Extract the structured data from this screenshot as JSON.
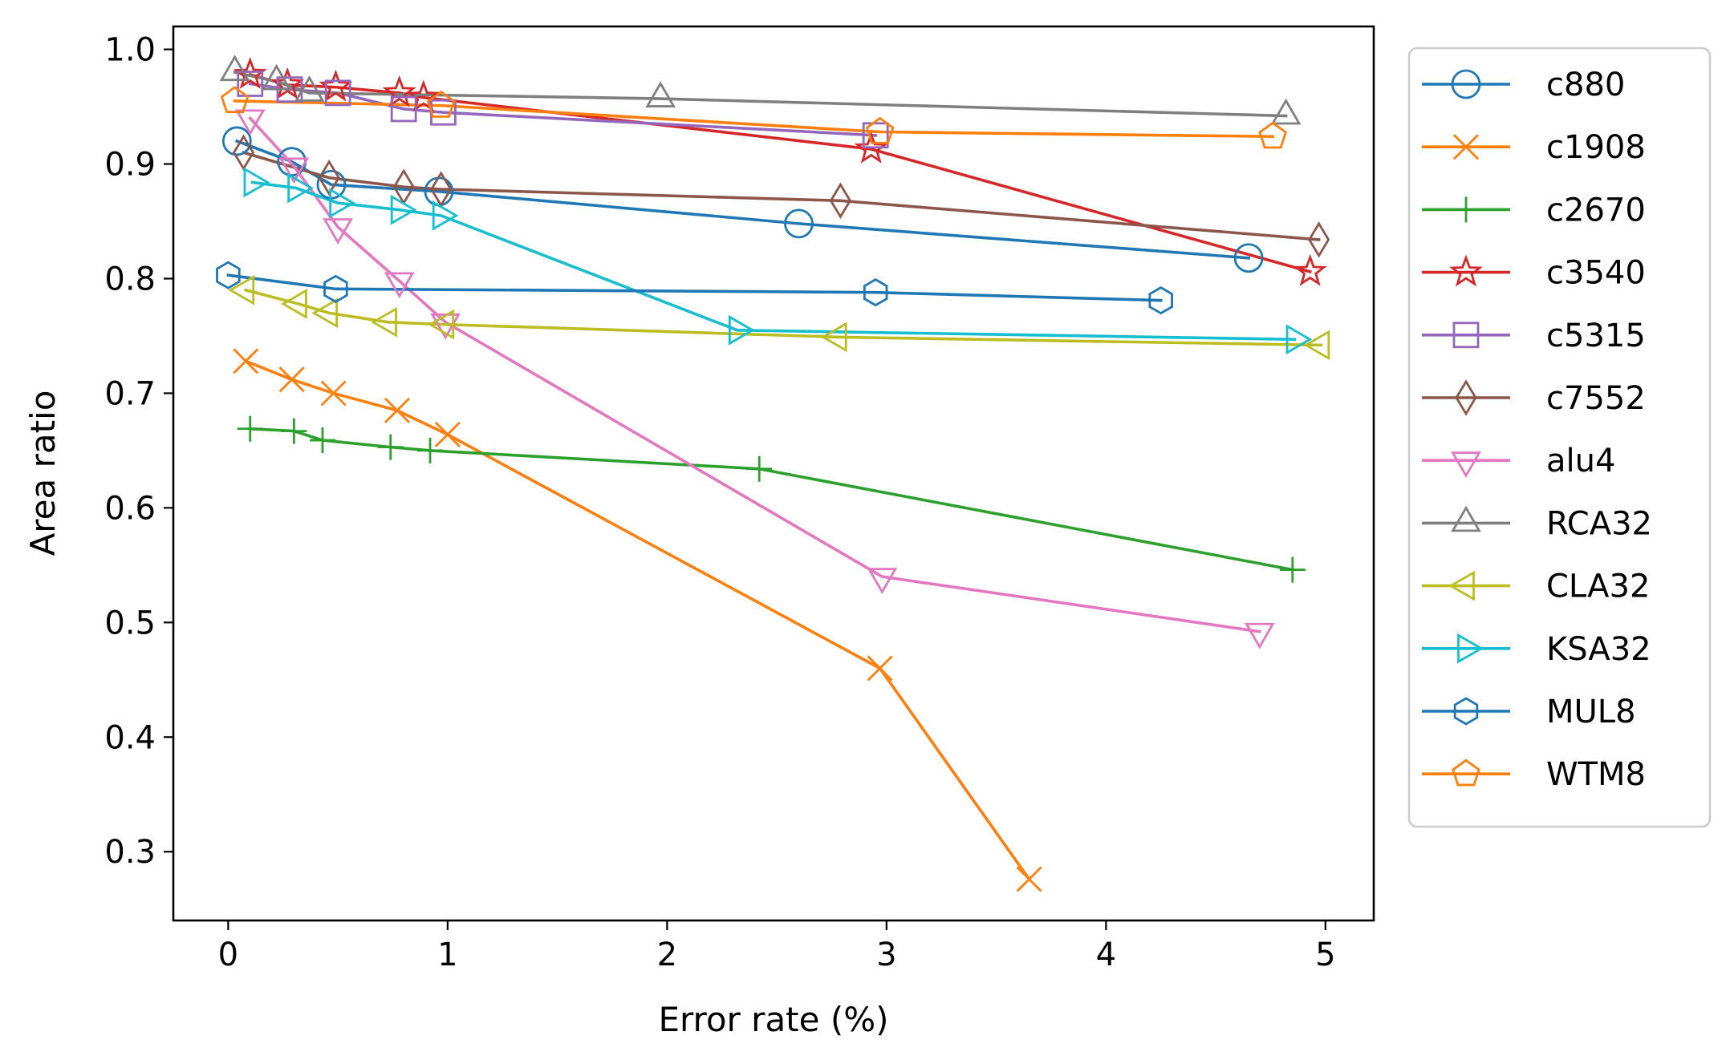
{
  "chart_data": {
    "type": "line",
    "xlabel": "Error rate (%)",
    "ylabel": "Area ratio",
    "xlim": [
      -0.25,
      5.22
    ],
    "ylim": [
      0.24,
      1.02
    ],
    "xticks": [
      0,
      1,
      2,
      3,
      4,
      5
    ],
    "yticks": [
      0.3,
      0.4,
      0.5,
      0.6,
      0.7,
      0.8,
      0.9,
      1.0
    ],
    "xtick_labels": [
      "0",
      "1",
      "2",
      "3",
      "4",
      "5"
    ],
    "ytick_labels": [
      "0.3",
      "0.4",
      "0.5",
      "0.6",
      "0.7",
      "0.8",
      "0.9",
      "1.0"
    ],
    "grid": false,
    "legend_placement": "outside right",
    "series": [
      {
        "name": "c880",
        "color": "#1f77b4",
        "marker": "circle",
        "x": [
          0.04,
          0.29,
          0.47,
          0.96,
          2.6,
          4.65
        ],
        "y": [
          0.92,
          0.902,
          0.882,
          0.876,
          0.848,
          0.818
        ]
      },
      {
        "name": "c1908",
        "color": "#ff7f0e",
        "marker": "x",
        "x": [
          0.08,
          0.29,
          0.48,
          0.77,
          1.0,
          2.97,
          3.65
        ],
        "y": [
          0.728,
          0.712,
          0.7,
          0.685,
          0.664,
          0.46,
          0.276
        ]
      },
      {
        "name": "c2670",
        "color": "#2ca02c",
        "marker": "plus",
        "x": [
          0.1,
          0.3,
          0.43,
          0.74,
          0.92,
          2.42,
          4.85
        ],
        "y": [
          0.669,
          0.667,
          0.659,
          0.653,
          0.65,
          0.634,
          0.546
        ]
      },
      {
        "name": "c3540",
        "color": "#d62728",
        "marker": "star",
        "x": [
          0.1,
          0.27,
          0.49,
          0.78,
          0.89,
          2.93,
          4.93
        ],
        "y": [
          0.978,
          0.969,
          0.967,
          0.962,
          0.958,
          0.913,
          0.806
        ]
      },
      {
        "name": "c5315",
        "color": "#9467bd",
        "marker": "square",
        "x": [
          0.1,
          0.28,
          0.5,
          0.8,
          0.98,
          2.95
        ],
        "y": [
          0.97,
          0.965,
          0.962,
          0.948,
          0.945,
          0.925
        ]
      },
      {
        "name": "c7552",
        "color": "#8c564b",
        "marker": "thin_diamond",
        "x": [
          0.07,
          0.46,
          0.8,
          0.97,
          2.79,
          4.97
        ],
        "y": [
          0.91,
          0.888,
          0.88,
          0.878,
          0.868,
          0.834
        ]
      },
      {
        "name": "alu4",
        "color": "#e377c2",
        "marker": "triangle_down",
        "x": [
          0.1,
          0.3,
          0.5,
          0.78,
          0.99,
          2.98,
          4.7
        ],
        "y": [
          0.94,
          0.898,
          0.845,
          0.798,
          0.762,
          0.54,
          0.492
        ]
      },
      {
        "name": "RCA32",
        "color": "#7f7f7f",
        "marker": "triangle_up",
        "x": [
          0.03,
          0.22,
          0.37,
          1.97,
          4.82
        ],
        "y": [
          0.98,
          0.972,
          0.962,
          0.957,
          0.942
        ]
      },
      {
        "name": "CLA32",
        "color": "#bcbd22",
        "marker": "triangle_left",
        "x": [
          0.08,
          0.32,
          0.46,
          0.73,
          0.99,
          2.78,
          4.98
        ],
        "y": [
          0.79,
          0.778,
          0.77,
          0.762,
          0.76,
          0.749,
          0.742
        ]
      },
      {
        "name": "KSA32",
        "color": "#17becf",
        "marker": "triangle_right",
        "x": [
          0.11,
          0.31,
          0.5,
          0.78,
          0.97,
          2.32,
          4.86
        ],
        "y": [
          0.884,
          0.879,
          0.866,
          0.86,
          0.855,
          0.755,
          0.747
        ]
      },
      {
        "name": "MUL8",
        "color": "#1f77b4",
        "marker": "hexagon",
        "x": [
          0.0,
          0.49,
          2.95,
          4.25
        ],
        "y": [
          0.803,
          0.791,
          0.788,
          0.781
        ]
      },
      {
        "name": "WTM8",
        "color": "#ff7f0e",
        "marker": "pentagon",
        "x": [
          0.03,
          0.97,
          2.97,
          4.76
        ],
        "y": [
          0.955,
          0.951,
          0.928,
          0.924
        ]
      }
    ]
  }
}
